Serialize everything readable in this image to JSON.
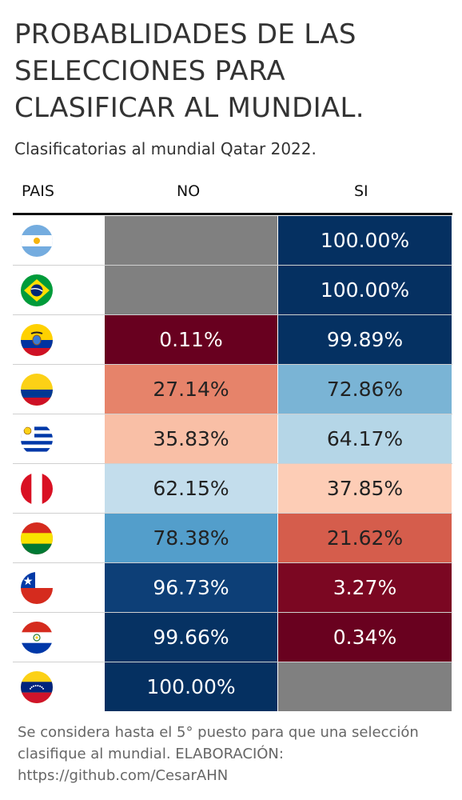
{
  "title": "PROBABLIDADES DE LAS SELECCIONES PARA CLASIFICAR AL MUNDIAL.",
  "subtitle": "Clasificatorias al mundial Qatar 2022.",
  "columns": {
    "pais": "PAIS",
    "no": "NO",
    "si": "SI"
  },
  "footer": "Se considera hasta el 5° puesto para que una selección clasifique al mundial. ELABORACIÓN: https://github.com/CesarAHN",
  "chart_data": {
    "type": "table",
    "columns": [
      "PAIS",
      "NO",
      "SI"
    ],
    "rows": [
      {
        "flag": "argentina-flag-icon",
        "no": null,
        "si": 100.0,
        "no_label": "",
        "si_label": "100.00%"
      },
      {
        "flag": "brazil-flag-icon",
        "no": null,
        "si": 100.0,
        "no_label": "",
        "si_label": "100.00%"
      },
      {
        "flag": "ecuador-flag-icon",
        "no": 0.11,
        "si": 99.89,
        "no_label": "0.11%",
        "si_label": "99.89%"
      },
      {
        "flag": "colombia-flag-icon",
        "no": 27.14,
        "si": 72.86,
        "no_label": "27.14%",
        "si_label": "72.86%"
      },
      {
        "flag": "uruguay-flag-icon",
        "no": 35.83,
        "si": 64.17,
        "no_label": "35.83%",
        "si_label": "64.17%"
      },
      {
        "flag": "peru-flag-icon",
        "no": 62.15,
        "si": 37.85,
        "no_label": "62.15%",
        "si_label": "37.85%"
      },
      {
        "flag": "bolivia-flag-icon",
        "no": 78.38,
        "si": 21.62,
        "no_label": "78.38%",
        "si_label": "21.62%"
      },
      {
        "flag": "chile-flag-icon",
        "no": 96.73,
        "si": 3.27,
        "no_label": "96.73%",
        "si_label": "3.27%"
      },
      {
        "flag": "paraguay-flag-icon",
        "no": 99.66,
        "si": 0.34,
        "no_label": "99.66%",
        "si_label": "0.34%"
      },
      {
        "flag": "venezuela-flag-icon",
        "no": 100.0,
        "si": null,
        "no_label": "100.00%",
        "si_label": ""
      }
    ],
    "colors": {
      "missing": "#808080",
      "high": "#053061",
      "low": "#67001f"
    }
  }
}
